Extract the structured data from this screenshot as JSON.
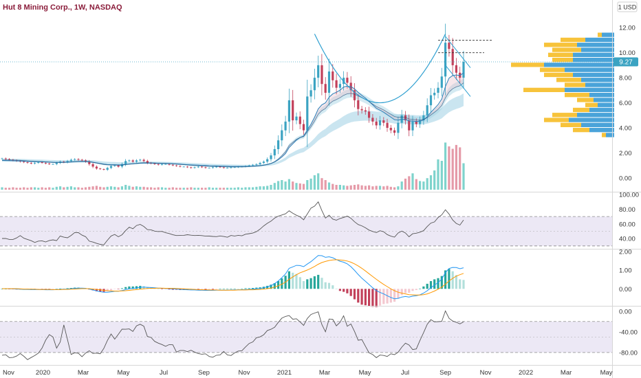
{
  "header": {
    "title": "Hut 8 Mining Corp., 1W, NASDAQ",
    "currency_button": "1 USD"
  },
  "last_price_label": "9.27",
  "colors": {
    "up": "#26a69a",
    "down": "#ef5350",
    "up_candle": "#3ba3c2",
    "down_candle": "#c2405a",
    "up_volume": "#7ed3cc",
    "down_volume": "#e59aa8",
    "ema_fast": "#2a7fb8",
    "ema_slow": "#1c4f7a",
    "ribbon": "#9fd0e3",
    "ribbon_red": "#e7b9c6",
    "rsi_line": "#555555",
    "macd_line": "#2196f3",
    "signal_line": "#ff9800",
    "vp_up": "#4aa3d9",
    "vp_down": "#f7c33b",
    "pattern_line": "#2e9fd0",
    "band_fill": "#ece8f5"
  },
  "chart_data": [
    {
      "type": "candlestick",
      "name": "price",
      "yaxis_ticks": [
        "0.00",
        "2.00",
        "4.00",
        "6.00",
        "8.00",
        "10.00",
        "12.00"
      ],
      "ylim": [
        -0.5,
        13
      ],
      "xaxis_ticks": [
        "Nov",
        "2020",
        "Mar",
        "May",
        "Jul",
        "Sep",
        "Nov",
        "2021",
        "Mar",
        "May",
        "Jul",
        "Sep",
        "Nov",
        "2022",
        "Mar",
        "May"
      ],
      "last_price": 9.27,
      "close": [
        1.55,
        1.5,
        1.45,
        1.4,
        1.35,
        1.3,
        1.25,
        1.2,
        1.15,
        1.2,
        1.25,
        1.2,
        1.15,
        1.1,
        1.1,
        1.2,
        1.3,
        1.25,
        1.35,
        1.45,
        1.5,
        1.45,
        1.4,
        1.3,
        1.1,
        0.9,
        0.75,
        0.7,
        0.65,
        0.8,
        0.95,
        1.0,
        0.9,
        1.1,
        1.35,
        1.4,
        1.3,
        1.4,
        1.45,
        1.35,
        1.2,
        1.15,
        1.1,
        1.05,
        1.1,
        1.1,
        1.05,
        1.0,
        0.95,
        0.9,
        0.9,
        0.85,
        0.8,
        0.85,
        0.9,
        0.85,
        0.8,
        0.8,
        0.85,
        0.9,
        0.85,
        0.8,
        0.8,
        0.85,
        0.85,
        0.9,
        0.9,
        0.95,
        1.0,
        1.05,
        1.1,
        1.2,
        1.3,
        1.5,
        1.8,
        2.3,
        3.0,
        3.8,
        4.5,
        6.2,
        4.6,
        4.9,
        4.3,
        3.8,
        6.5,
        7.0,
        8.0,
        9.0,
        7.5,
        6.8,
        8.5,
        7.8,
        7.2,
        7.5,
        8.0,
        7.6,
        7.0,
        6.2,
        5.5,
        5.4,
        5.3,
        4.8,
        4.5,
        4.2,
        4.6,
        4.4,
        4.0,
        3.8,
        3.6,
        4.4,
        5.0,
        4.6,
        3.8,
        4.5,
        4.3,
        4.6,
        5.0,
        5.8,
        6.6,
        6.8,
        7.2,
        8.1,
        10.8,
        10.3,
        9.0,
        8.4,
        8.0,
        9.27
      ],
      "ema_fast": [
        1.4,
        1.39,
        1.38,
        1.37,
        1.36,
        1.35,
        1.34,
        1.33,
        1.31,
        1.3,
        1.3,
        1.29,
        1.27,
        1.26,
        1.25,
        1.24,
        1.25,
        1.25,
        1.26,
        1.28,
        1.3,
        1.31,
        1.31,
        1.31,
        1.29,
        1.25,
        1.2,
        1.15,
        1.1,
        1.07,
        1.06,
        1.06,
        1.04,
        1.05,
        1.08,
        1.11,
        1.13,
        1.15,
        1.18,
        1.19,
        1.19,
        1.19,
        1.18,
        1.17,
        1.16,
        1.16,
        1.15,
        1.13,
        1.12,
        1.1,
        1.08,
        1.06,
        1.04,
        1.03,
        1.02,
        1.0,
        0.99,
        0.97,
        0.96,
        0.96,
        0.95,
        0.94,
        0.93,
        0.92,
        0.92,
        0.92,
        0.92,
        0.92,
        0.93,
        0.94,
        0.96,
        0.98,
        1.02,
        1.07,
        1.15,
        1.27,
        1.44,
        1.67,
        1.95,
        2.43,
        2.72,
        3.02,
        3.22,
        3.35,
        3.82,
        4.29,
        4.85,
        5.51,
        5.84,
        6.0,
        6.44,
        6.71,
        6.84,
        7.01,
        7.26,
        7.33,
        7.29,
        7.11,
        6.83,
        6.59,
        6.38,
        6.11,
        5.84,
        5.56,
        5.41,
        5.25,
        5.05,
        4.85,
        4.65,
        4.61,
        4.68,
        4.68,
        4.55,
        4.55,
        4.51,
        4.53,
        4.63,
        4.88,
        5.24,
        5.55,
        5.86,
        6.3,
        7.3,
        7.97,
        8.18,
        8.22,
        8.18,
        8.39
      ],
      "volume": [
        0.05,
        0.04,
        0.04,
        0.05,
        0.04,
        0.04,
        0.05,
        0.04,
        0.05,
        0.05,
        0.04,
        0.05,
        0.04,
        0.05,
        0.04,
        0.06,
        0.07,
        0.05,
        0.06,
        0.07,
        0.05,
        0.05,
        0.04,
        0.05,
        0.06,
        0.07,
        0.08,
        0.06,
        0.05,
        0.06,
        0.07,
        0.06,
        0.05,
        0.07,
        0.1,
        0.08,
        0.06,
        0.07,
        0.06,
        0.06,
        0.05,
        0.05,
        0.04,
        0.05,
        0.05,
        0.04,
        0.04,
        0.05,
        0.04,
        0.04,
        0.04,
        0.04,
        0.05,
        0.04,
        0.04,
        0.04,
        0.04,
        0.05,
        0.04,
        0.04,
        0.04,
        0.04,
        0.04,
        0.04,
        0.04,
        0.05,
        0.04,
        0.05,
        0.05,
        0.05,
        0.06,
        0.07,
        0.07,
        0.08,
        0.1,
        0.14,
        0.18,
        0.2,
        0.17,
        0.22,
        0.17,
        0.14,
        0.13,
        0.12,
        0.2,
        0.23,
        0.3,
        0.34,
        0.24,
        0.2,
        0.15,
        0.12,
        0.1,
        0.1,
        0.09,
        0.08,
        0.09,
        0.1,
        0.11,
        0.09,
        0.08,
        0.09,
        0.07,
        0.08,
        0.08,
        0.07,
        0.08,
        0.06,
        0.05,
        0.07,
        0.17,
        0.23,
        0.28,
        0.34,
        0.22,
        0.18,
        0.17,
        0.24,
        0.3,
        0.4,
        0.63,
        0.6,
        0.98,
        0.9,
        0.85,
        0.93,
        0.88,
        0.55
      ]
    },
    {
      "type": "volume_profile",
      "name": "volume profile",
      "levels": [
        11.4,
        11.0,
        10.6,
        10.2,
        9.8,
        9.4,
        9.0,
        8.6,
        8.2,
        7.8,
        7.4,
        7.0,
        6.6,
        6.2,
        5.8,
        5.4,
        5.0,
        4.6,
        4.2,
        3.8,
        3.4
      ],
      "up_volume": [
        0.15,
        0.35,
        0.45,
        0.4,
        0.5,
        0.5,
        0.85,
        0.6,
        0.5,
        0.4,
        0.35,
        0.6,
        0.3,
        0.25,
        0.2,
        0.3,
        0.45,
        0.55,
        0.4,
        0.3,
        0.1
      ],
      "down_volume": [
        0.05,
        0.3,
        0.4,
        0.35,
        0.3,
        0.25,
        0.4,
        0.3,
        0.35,
        0.3,
        0.25,
        0.5,
        0.3,
        0.2,
        0.15,
        0.2,
        0.3,
        0.3,
        0.25,
        0.2,
        0.05
      ]
    },
    {
      "type": "line",
      "name": "RSI",
      "yaxis_ticks": [
        "40.00",
        "60.00",
        "80.00",
        "100.00"
      ],
      "ylim": [
        28,
        100
      ],
      "bands": [
        30,
        70
      ],
      "values": [
        40.2,
        40.2,
        38.8,
        38.8,
        40.9,
        44.1,
        40.5,
        38.8,
        37.2,
        34.7,
        36.6,
        37.0,
        35.5,
        37.4,
        38.3,
        37.3,
        43.5,
        41.9,
        41.1,
        44.3,
        48.3,
        48.1,
        44.7,
        42.6,
        36.5,
        35.3,
        33.5,
        32.2,
        31.5,
        37.8,
        43.5,
        45.7,
        42.5,
        45.2,
        50.8,
        55.6,
        53.4,
        57.8,
        59.3,
        56.5,
        52.2,
        51.9,
        50.2,
        49.6,
        49.8,
        48.0,
        46.9,
        45.2,
        44.2,
        44.3,
        44.5,
        45.3,
        44.6,
        44.2,
        44.5,
        44.1,
        43.3,
        43.4,
        43.0,
        42.7,
        43.6,
        42.9,
        41.8,
        44.3,
        43.5,
        44.5,
        43.8,
        46.0,
        46.7,
        47.5,
        49.4,
        52.9,
        57.3,
        60.8,
        63.7,
        67.8,
        70.5,
        72.1,
        73.7,
        77.8,
        74.5,
        71.8,
        69.7,
        65.6,
        73.4,
        81.5,
        84.2,
        90.0,
        78.3,
        67.9,
        71.9,
        66.5,
        65.0,
        67.4,
        68.8,
        70.6,
        67.6,
        62.9,
        59.1,
        57.4,
        54.7,
        51.6,
        49.7,
        48.2,
        50.7,
        49.3,
        45.5,
        43.3,
        42.0,
        47.6,
        50.3,
        47.6,
        42.5,
        46.6,
        47.4,
        48.8,
        50.8,
        56.4,
        61.1,
        62.7,
        68.7,
        72.3,
        79.2,
        73.4,
        65.4,
        60.6,
        58.4,
        65.3
      ]
    },
    {
      "type": "line",
      "name": "MACD",
      "yaxis_ticks": [
        "0.00",
        "1.00",
        "2.00"
      ],
      "ylim": [
        -0.8,
        2.0
      ],
      "macd": [
        0.01,
        0.01,
        0.0,
        0.0,
        -0.01,
        -0.02,
        -0.03,
        -0.03,
        -0.04,
        -0.04,
        -0.04,
        -0.04,
        -0.05,
        -0.05,
        -0.05,
        -0.04,
        -0.03,
        -0.02,
        -0.01,
        0.01,
        0.03,
        0.04,
        0.04,
        0.03,
        -0.01,
        -0.06,
        -0.11,
        -0.15,
        -0.18,
        -0.18,
        -0.16,
        -0.13,
        -0.13,
        -0.09,
        -0.04,
        0.0,
        0.02,
        0.05,
        0.08,
        0.09,
        0.08,
        0.07,
        0.06,
        0.04,
        0.03,
        0.02,
        0.01,
        0.0,
        -0.01,
        -0.03,
        -0.04,
        -0.05,
        -0.06,
        -0.06,
        -0.07,
        -0.07,
        -0.08,
        -0.08,
        -0.08,
        -0.07,
        -0.07,
        -0.07,
        -0.07,
        -0.06,
        -0.06,
        -0.05,
        -0.05,
        -0.04,
        -0.03,
        -0.02,
        0.0,
        0.02,
        0.06,
        0.11,
        0.18,
        0.28,
        0.42,
        0.6,
        0.8,
        1.1,
        1.18,
        1.26,
        1.25,
        1.19,
        1.33,
        1.46,
        1.62,
        1.79,
        1.78,
        1.69,
        1.72,
        1.67,
        1.57,
        1.48,
        1.43,
        1.34,
        1.19,
        0.99,
        0.77,
        0.57,
        0.41,
        0.23,
        0.06,
        -0.1,
        -0.19,
        -0.27,
        -0.37,
        -0.46,
        -0.53,
        -0.51,
        -0.44,
        -0.41,
        -0.44,
        -0.39,
        -0.37,
        -0.32,
        -0.23,
        -0.1,
        0.06,
        0.2,
        0.34,
        0.52,
        0.87,
        1.09,
        1.15,
        1.14,
        1.08,
        1.13
      ],
      "signal": [
        0.01,
        0.01,
        0.01,
        0.01,
        0.01,
        0.0,
        -0.01,
        -0.01,
        -0.02,
        -0.02,
        -0.03,
        -0.03,
        -0.03,
        -0.03,
        -0.04,
        -0.04,
        -0.04,
        -0.03,
        -0.03,
        -0.02,
        -0.01,
        0.0,
        0.01,
        0.01,
        0.01,
        -0.01,
        -0.03,
        -0.05,
        -0.08,
        -0.1,
        -0.11,
        -0.12,
        -0.12,
        -0.11,
        -0.1,
        -0.08,
        -0.06,
        -0.04,
        -0.02,
        0.0,
        0.02,
        0.03,
        0.03,
        0.04,
        0.04,
        0.03,
        0.03,
        0.03,
        0.02,
        0.01,
        0.0,
        -0.01,
        -0.02,
        -0.03,
        -0.04,
        -0.05,
        -0.05,
        -0.06,
        -0.06,
        -0.06,
        -0.07,
        -0.07,
        -0.07,
        -0.07,
        -0.07,
        -0.06,
        -0.06,
        -0.06,
        -0.05,
        -0.05,
        -0.04,
        -0.03,
        -0.01,
        0.01,
        0.04,
        0.09,
        0.16,
        0.25,
        0.36,
        0.51,
        0.64,
        0.76,
        0.86,
        0.93,
        1.01,
        1.1,
        1.2,
        1.32,
        1.41,
        1.47,
        1.52,
        1.55,
        1.56,
        1.55,
        1.53,
        1.49,
        1.43,
        1.34,
        1.23,
        1.1,
        0.96,
        0.81,
        0.66,
        0.51,
        0.37,
        0.24,
        0.12,
        0.0,
        -0.1,
        -0.18,
        -0.23,
        -0.27,
        -0.31,
        -0.32,
        -0.33,
        -0.33,
        -0.31,
        -0.27,
        -0.2,
        -0.12,
        -0.02,
        0.09,
        0.25,
        0.42,
        0.56,
        0.68,
        0.76,
        0.83
      ]
    },
    {
      "type": "line",
      "name": "Williams %R",
      "yaxis_ticks": [
        "0.00",
        "-40.00",
        "-80.00"
      ],
      "ylim": [
        -100,
        5
      ],
      "bands": [
        -20,
        -80
      ],
      "values": [
        -85.2,
        -84.2,
        -89.9,
        -89.5,
        -86.9,
        -81.9,
        -87.3,
        -93.7,
        -89.6,
        -85.8,
        -81.1,
        -71.4,
        -56.0,
        -45.4,
        -49.9,
        -71.4,
        -59.7,
        -26.5,
        -54.8,
        -83.7,
        -80.4,
        -81.5,
        -88.0,
        -81.0,
        -76.6,
        -81.8,
        -81.1,
        -82.3,
        -72.1,
        -56.6,
        -44.2,
        -54.2,
        -44.7,
        -34.9,
        -35.0,
        -34.4,
        -39.3,
        -28.3,
        -25.3,
        -29.0,
        -49.0,
        -50.8,
        -58.4,
        -61.9,
        -64.5,
        -68.0,
        -64.6,
        -65.0,
        -79.3,
        -76.0,
        -76.0,
        -78.3,
        -75.6,
        -79.1,
        -81.9,
        -83.2,
        -82.5,
        -87.7,
        -89.1,
        -85.3,
        -84.7,
        -77.9,
        -84.6,
        -85.8,
        -80.7,
        -77.2,
        -76.5,
        -69.1,
        -62.4,
        -59.4,
        -51.3,
        -49.8,
        -45.7,
        -37.4,
        -35.0,
        -31.0,
        -21.8,
        -13.5,
        -10.2,
        -8.4,
        -15.6,
        -14.7,
        -20.7,
        -27.5,
        -14.1,
        -6.4,
        -3.7,
        -1.3,
        -25.6,
        -39.9,
        -15.2,
        -15.8,
        -28.3,
        -21.6,
        -9.0,
        -29.2,
        -24.8,
        -39.3,
        -56.3,
        -54.8,
        -67.7,
        -80.6,
        -83.9,
        -89.9,
        -84.8,
        -85.6,
        -87.5,
        -82.4,
        -84.1,
        -79.4,
        -69.5,
        -61.8,
        -65.5,
        -74.2,
        -73.0,
        -56.6,
        -41.4,
        -25.3,
        -16.4,
        -20.7,
        -20.2,
        -19.7,
        0.5,
        -13.8,
        -19.1,
        -21.4,
        -24.7,
        -20.8
      ]
    }
  ]
}
